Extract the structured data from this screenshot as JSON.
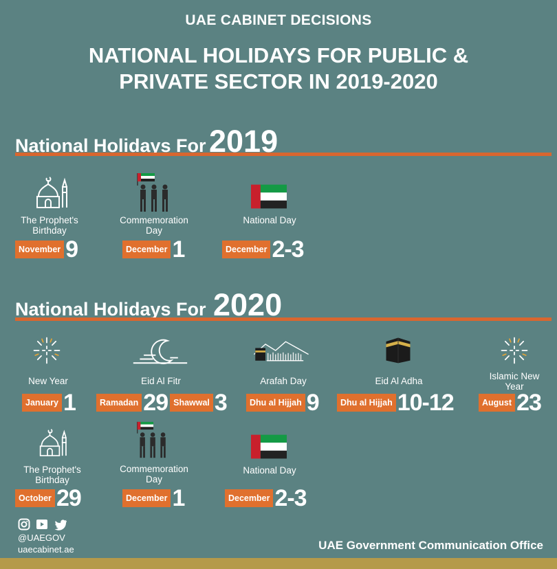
{
  "header": {
    "kicker": "UAE CABINET DECISIONS",
    "title_line1": "NATIONAL HOLIDAYS FOR PUBLIC &",
    "title_line2": "PRIVATE SECTOR IN 2019-2020"
  },
  "section_2019": {
    "label": "National Holidays For",
    "year": "2019",
    "holidays": [
      {
        "name_line1": "The Prophet's",
        "name_line2": "Birthday",
        "date_label": "November",
        "date_num": "9",
        "icon": "mosque-icon"
      },
      {
        "name_line1": "Commemoration",
        "name_line2": "Day",
        "date_label": "December",
        "date_num": "1",
        "icon": "soldiers-flag-icon"
      },
      {
        "name_line1": "National Day",
        "name_line2": "",
        "date_label": "December",
        "date_num": "2-3",
        "icon": "uae-flag-icon"
      }
    ]
  },
  "section_2020": {
    "label": "National Holidays For",
    "year": "2020",
    "holidays": [
      {
        "name_line1": "New Year",
        "name_line2": "",
        "date_label": "January",
        "date_num": "1",
        "icon": "fireworks-icon"
      },
      {
        "name_line1": "Eid Al Fitr",
        "name_line2": "",
        "date_label": "Ramadan",
        "date_num": "29",
        "date_label2": "Shawwal",
        "date_num2": "3",
        "icon": "crescent-icon"
      },
      {
        "name_line1": "Arafah Day",
        "name_line2": "",
        "date_label": "Dhu al Hijjah",
        "date_num": "9",
        "icon": "arafah-icon"
      },
      {
        "name_line1": "Eid Al Adha",
        "name_line2": "",
        "date_label": "Dhu al Hijjah",
        "date_num": "10-12",
        "icon": "kaaba-icon"
      },
      {
        "name_line1": "Islamic New",
        "name_line2": "Year",
        "date_label": "August",
        "date_num": "23",
        "icon": "fireworks-icon"
      },
      {
        "name_line1": "The Prophet's",
        "name_line2": "Birthday",
        "date_label": "October",
        "date_num": "29",
        "icon": "mosque-icon"
      },
      {
        "name_line1": "Commemoration",
        "name_line2": "Day",
        "date_label": "December",
        "date_num": "1",
        "icon": "soldiers-flag-icon"
      },
      {
        "name_line1": "National Day",
        "name_line2": "",
        "date_label": "December",
        "date_num": "2-3",
        "icon": "uae-flag-icon"
      }
    ]
  },
  "footer": {
    "handle": "@UAEGOV",
    "website": "uaecabinet.ae",
    "office": "UAE Government Communication Office",
    "social_icons": [
      "instagram-icon",
      "youtube-icon",
      "twitter-icon"
    ]
  },
  "colors": {
    "background": "#5b8282",
    "accent": "#e0702e",
    "footer_bar": "#b59a4a",
    "flag_red": "#c8202c",
    "flag_green": "#149a45"
  }
}
